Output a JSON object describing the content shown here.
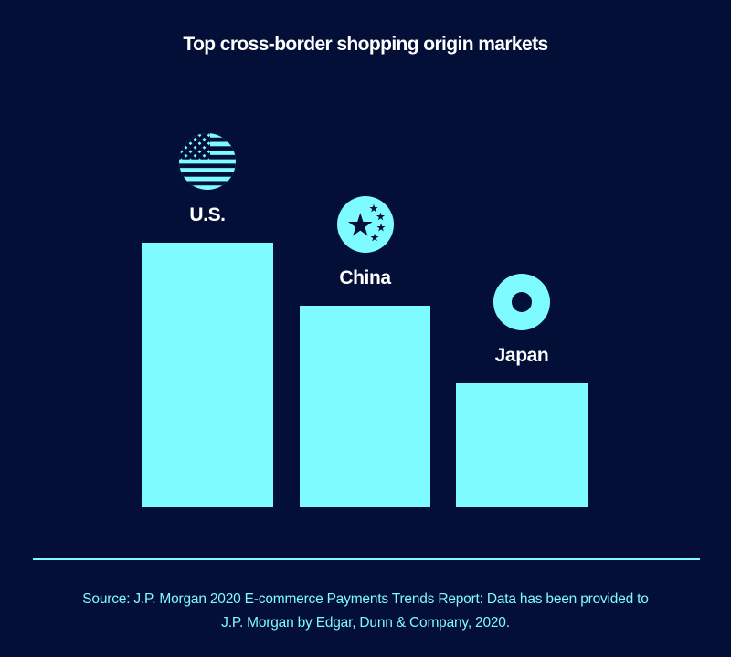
{
  "title": "Top cross-border shopping origin markets",
  "colors": {
    "background": "#040F38",
    "accent_cyan": "#7DFBFF",
    "text_white": "#FFFFFF",
    "source_text_cyan": "#7DF9FF"
  },
  "chart_data": {
    "type": "bar",
    "title": "Top cross-border shopping origin markets",
    "categories": [
      "U.S.",
      "China",
      "Japan"
    ],
    "values": [
      290,
      221,
      136
    ],
    "values_note": "no numeric axis or data labels shown; values are relative bar heights in px (ratio 1.00 : 0.76 : 0.47)",
    "xlabel": "",
    "ylabel": "",
    "legend": "none",
    "grid": false,
    "bar_color": "#7DFBFF",
    "category_icons": [
      "us-flag",
      "china-flag",
      "japan-flag"
    ]
  },
  "bars": [
    {
      "label": "U.S.",
      "icon": "us-flag"
    },
    {
      "label": "China",
      "icon": "china-flag"
    },
    {
      "label": "Japan",
      "icon": "japan-flag"
    }
  ],
  "footer": {
    "source_line1": "Source: J.P. Morgan 2020 E-commerce Payments Trends Report: Data has been provided to",
    "source_line2": "J.P. Morgan by Edgar, Dunn & Company, 2020."
  }
}
